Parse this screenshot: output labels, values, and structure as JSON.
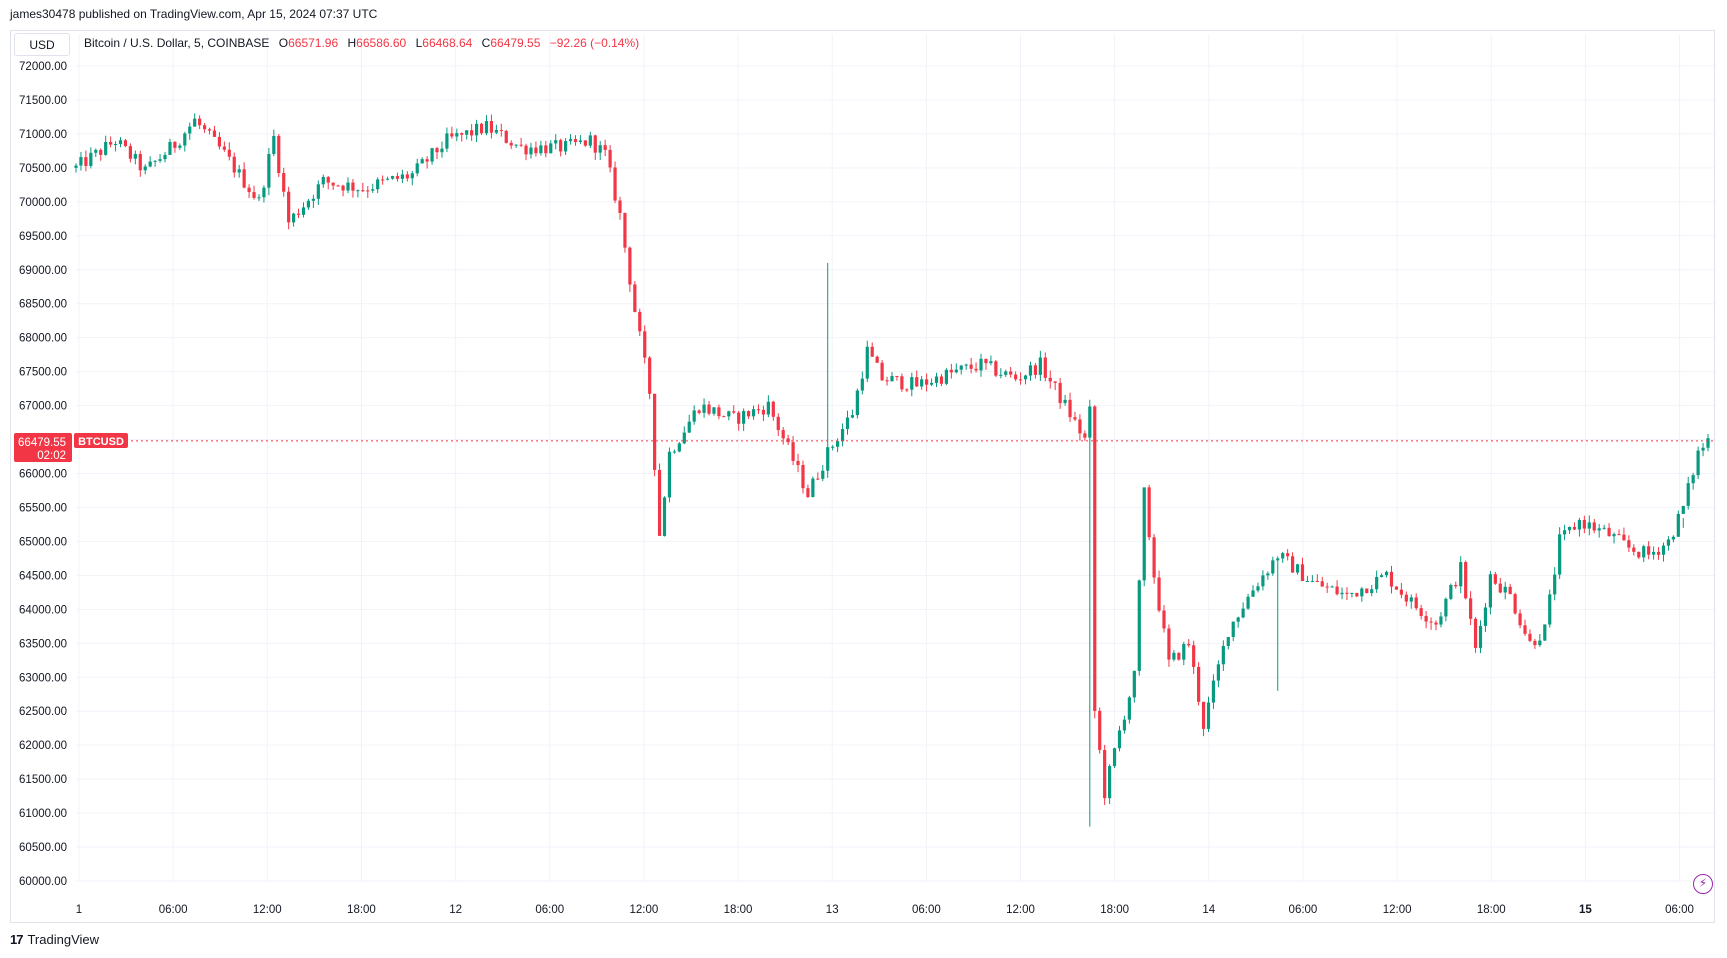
{
  "published": "james30478 published on TradingView.com, Apr 15, 2024 07:37 UTC",
  "currency": "USD",
  "legend": {
    "symbol": "Bitcoin / U.S. Dollar, 5, COINBASE",
    "open_key": "O",
    "open": "66571.96",
    "high_key": "H",
    "high": "66586.60",
    "low_key": "L",
    "low": "66468.64",
    "close_key": "C",
    "close": "66479.55",
    "change": "−92.26 (−0.14%)"
  },
  "price_tag": {
    "price": "66479.55",
    "countdown": "02:02",
    "ticker": "BTCUSD"
  },
  "footer": {
    "brand": "TradingView",
    "logo_glyph": "17"
  },
  "colors": {
    "up": "#089981",
    "down": "#f23645",
    "grid": "#f0f3fa",
    "price_line": "#f23645"
  },
  "icons": {
    "footer_logo": "tradingview-logo-icon",
    "bolt": "lightning-bolt-icon"
  },
  "chart_data": {
    "type": "candlestick",
    "yaxis_ticks": [
      "72000.00",
      "71500.00",
      "71000.00",
      "70500.00",
      "70000.00",
      "69500.00",
      "69000.00",
      "68500.00",
      "68000.00",
      "67500.00",
      "67000.00",
      "66500.00",
      "66000.00",
      "65500.00",
      "65000.00",
      "64500.00",
      "64000.00",
      "63500.00",
      "63000.00",
      "62500.00",
      "62000.00",
      "61500.00",
      "61000.00",
      "60500.00",
      "60000.00"
    ],
    "ylim": [
      60000,
      72000
    ],
    "xaxis_ticks": [
      {
        "label": "1",
        "major": false
      },
      {
        "label": "06:00",
        "major": false
      },
      {
        "label": "12:00",
        "major": false
      },
      {
        "label": "18:00",
        "major": false
      },
      {
        "label": "12",
        "major": false
      },
      {
        "label": "06:00",
        "major": false
      },
      {
        "label": "12:00",
        "major": false
      },
      {
        "label": "18:00",
        "major": false
      },
      {
        "label": "13",
        "major": false
      },
      {
        "label": "06:00",
        "major": false
      },
      {
        "label": "12:00",
        "major": false
      },
      {
        "label": "18:00",
        "major": false
      },
      {
        "label": "14",
        "major": false
      },
      {
        "label": "06:00",
        "major": false
      },
      {
        "label": "12:00",
        "major": false
      },
      {
        "label": "18:00",
        "major": false
      },
      {
        "label": "15",
        "major": true
      },
      {
        "label": "06:00",
        "major": false
      }
    ],
    "price_path": [
      [
        0,
        70500
      ],
      [
        8,
        70900
      ],
      [
        14,
        70450
      ],
      [
        20,
        70850
      ],
      [
        24,
        71200
      ],
      [
        30,
        70700
      ],
      [
        37,
        70000
      ],
      [
        40,
        70950
      ],
      [
        43,
        69700
      ],
      [
        50,
        70300
      ],
      [
        58,
        70200
      ],
      [
        68,
        70400
      ],
      [
        75,
        70900
      ],
      [
        83,
        71100
      ],
      [
        90,
        70800
      ],
      [
        99,
        70800
      ],
      [
        104,
        70900
      ],
      [
        107,
        70700
      ],
      [
        110,
        69800
      ],
      [
        113,
        68400
      ],
      [
        116,
        67200
      ],
      [
        118,
        65100
      ],
      [
        120,
        66300
      ],
      [
        126,
        67000
      ],
      [
        133,
        66800
      ],
      [
        140,
        67000
      ],
      [
        145,
        66200
      ],
      [
        148,
        65700
      ],
      [
        152,
        66300
      ],
      [
        157,
        66900
      ],
      [
        160,
        67800
      ],
      [
        163,
        67400
      ],
      [
        170,
        67300
      ],
      [
        178,
        67500
      ],
      [
        183,
        67600
      ],
      [
        190,
        67400
      ],
      [
        195,
        67600
      ],
      [
        200,
        67000
      ],
      [
        204,
        66500
      ],
      [
        205,
        66900
      ],
      [
        206,
        62500
      ],
      [
        208,
        61300
      ],
      [
        211,
        62200
      ],
      [
        214,
        63000
      ],
      [
        216,
        65700
      ],
      [
        218,
        64500
      ],
      [
        221,
        63200
      ],
      [
        225,
        63500
      ],
      [
        228,
        62300
      ],
      [
        233,
        63700
      ],
      [
        238,
        64300
      ],
      [
        243,
        64800
      ],
      [
        250,
        64400
      ],
      [
        257,
        64200
      ],
      [
        265,
        64500
      ],
      [
        270,
        64100
      ],
      [
        275,
        63800
      ],
      [
        280,
        64600
      ],
      [
        283,
        63400
      ],
      [
        286,
        64500
      ],
      [
        290,
        64200
      ],
      [
        294,
        63500
      ],
      [
        297,
        63700
      ],
      [
        300,
        65000
      ],
      [
        304,
        65300
      ],
      [
        310,
        65100
      ],
      [
        314,
        64900
      ],
      [
        318,
        64800
      ],
      [
        322,
        65000
      ],
      [
        325,
        65500
      ],
      [
        328,
        66300
      ],
      [
        330,
        66500
      ]
    ],
    "wick_spikes": [
      {
        "x": 118,
        "low": 65100
      },
      {
        "x": 152,
        "high": 69100
      },
      {
        "x": 205,
        "low": 60800
      },
      {
        "x": 216,
        "high": 65700
      },
      {
        "x": 243,
        "low": 62800
      },
      {
        "x": 325,
        "high": 65200
      }
    ],
    "current_price": 66479.55
  }
}
